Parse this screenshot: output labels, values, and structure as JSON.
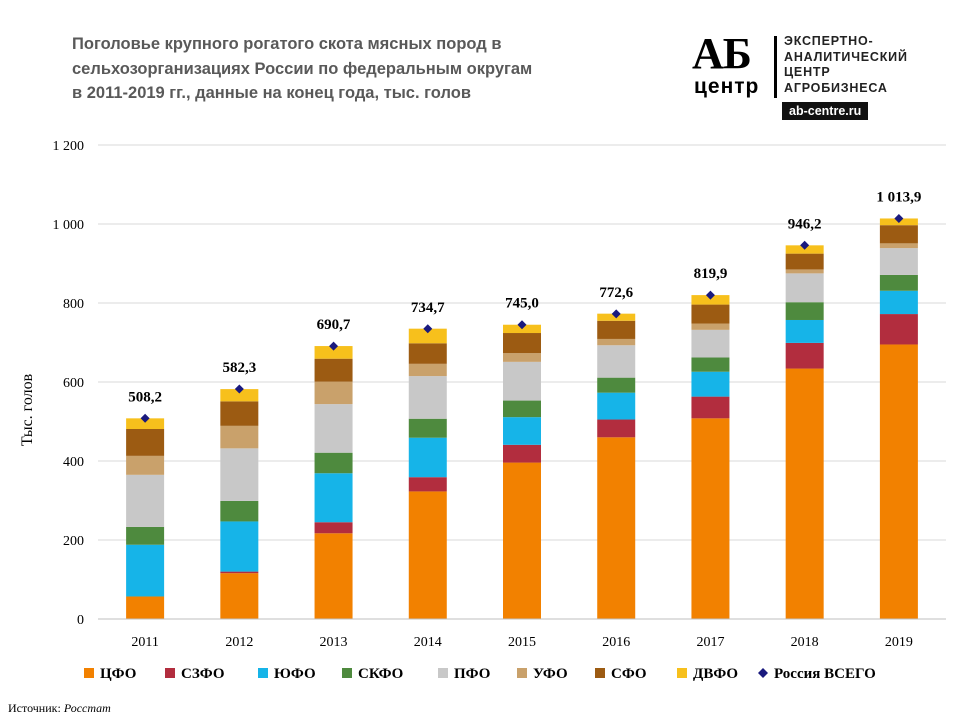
{
  "title_lines": [
    "Поголовье крупного рогатого скота мясных пород в",
    "сельхозорганизациях России по федеральным округам",
    "в 2011-2019 гг., данные на конец года, тыс. голов"
  ],
  "logo": {
    "letters": "АБ",
    "center": "центр",
    "desc_lines": [
      "ЭКСПЕРТНО-",
      "АНАЛИТИЧЕСКИЙ",
      "ЦЕНТР",
      "АГРОБИЗНЕСА"
    ],
    "url": "ab-centre.ru"
  },
  "source": {
    "label": "Источник:",
    "value": "Росстат"
  },
  "chart_data": {
    "type": "bar",
    "stacked": true,
    "title": "Поголовье крупного рогатого скота мясных пород в сельхозорганизациях России по федеральным округам в 2011-2019 гг., данные на конец года, тыс. голов",
    "xlabel": "",
    "ylabel": "Тыс. голов",
    "ylim": [
      0,
      1200
    ],
    "yticks": [
      0,
      200,
      400,
      600,
      800,
      1000,
      1200
    ],
    "ytick_labels": [
      "0",
      "200",
      "400",
      "600",
      "800",
      "1 000",
      "1 200"
    ],
    "grid": true,
    "legend_position": "bottom",
    "categories": [
      "2011",
      "2012",
      "2013",
      "2014",
      "2015",
      "2016",
      "2017",
      "2018",
      "2019"
    ],
    "series": [
      {
        "name": "ЦФО",
        "color": "#F28100",
        "values": [
          57,
          116,
          217,
          323,
          396,
          460,
          508,
          634,
          695
        ]
      },
      {
        "name": "СЗФО",
        "color": "#B22D3E",
        "values": [
          0,
          4,
          28,
          36,
          45,
          45,
          55,
          65,
          77
        ]
      },
      {
        "name": "ЮФО",
        "color": "#16B4E8",
        "values": [
          131,
          127,
          124,
          100,
          70,
          68,
          63,
          58,
          59
        ]
      },
      {
        "name": "СКФО",
        "color": "#4E8A3E",
        "values": [
          45,
          52,
          52,
          48,
          42,
          38,
          36,
          45,
          40
        ]
      },
      {
        "name": "ПФО",
        "color": "#C8C8C8",
        "values": [
          132,
          133,
          123,
          108,
          98,
          82,
          70,
          73,
          68
        ]
      },
      {
        "name": "УФО",
        "color": "#C9A16B",
        "values": [
          48,
          57,
          57,
          31,
          22,
          16,
          16,
          10,
          12
        ]
      },
      {
        "name": "СФО",
        "color": "#9C5B12",
        "values": [
          68,
          62,
          58,
          52,
          51,
          46,
          48,
          40,
          46
        ]
      },
      {
        "name": "ДВФО",
        "color": "#F7C01C",
        "values": [
          27,
          31,
          32,
          37,
          21,
          18,
          24,
          21,
          17
        ]
      }
    ],
    "total": {
      "name": "Россия ВСЕГО",
      "color": "#1A1A7E",
      "values": [
        508.2,
        582.3,
        690.7,
        734.7,
        745.0,
        772.6,
        819.9,
        946.2,
        1013.9
      ],
      "labels": [
        "508,2",
        "582,3",
        "690,7",
        "734,7",
        "745,0",
        "772,6",
        "819,9",
        "946,2",
        "1 013,9"
      ]
    }
  }
}
